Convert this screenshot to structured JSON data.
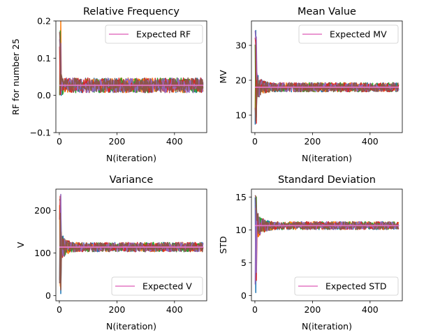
{
  "figure": {
    "background": "#ffffff"
  },
  "colors": {
    "trace_cycle": [
      "#1f77b4",
      "#ff7f0e",
      "#2ca02c",
      "#d62728",
      "#9467bd",
      "#8c564b"
    ],
    "expected_line": "#e377c2"
  },
  "chart_data": [
    {
      "type": "line",
      "title": "Relative Frequency",
      "xlabel": "N(iteration)",
      "ylabel": "RF for number 25",
      "xlim": [
        -12,
        512
      ],
      "ylim": [
        -0.1,
        0.2
      ],
      "xticks": [
        0,
        200,
        400
      ],
      "xtick_labels": [
        "0",
        "200",
        "400"
      ],
      "yticks": [
        -0.1,
        0.0,
        0.1,
        0.2
      ],
      "ytick_labels": [
        "−0.1",
        "0.0",
        "0.1",
        "0.2"
      ],
      "legend": {
        "label": "Expected RF",
        "loc": "upper right"
      },
      "expected": 0.027,
      "n_iterations": 500,
      "n_series": 6,
      "series_min": 0.0,
      "series_max": 0.2,
      "band_end": 0.018
    },
    {
      "type": "line",
      "title": "Mean Value",
      "xlabel": "N(iteration)",
      "ylabel": "MV",
      "xlim": [
        -12,
        512
      ],
      "ylim": [
        5,
        37
      ],
      "xticks": [
        0,
        200,
        400
      ],
      "xtick_labels": [
        "0",
        "200",
        "400"
      ],
      "yticks": [
        10,
        20,
        30
      ],
      "ytick_labels": [
        "10",
        "20",
        "30"
      ],
      "legend": {
        "label": "Expected MV",
        "loc": "upper right"
      },
      "expected": 18.0,
      "n_iterations": 500,
      "n_series": 6,
      "series_min": 7,
      "series_max": 35.5,
      "band_end": 1.2
    },
    {
      "type": "line",
      "title": "Variance",
      "xlabel": "N(iteration)",
      "ylabel": "V",
      "xlim": [
        -12,
        512
      ],
      "ylim": [
        -12,
        250
      ],
      "xticks": [
        0,
        200,
        400
      ],
      "xtick_labels": [
        "0",
        "200",
        "400"
      ],
      "yticks": [
        0,
        100,
        200
      ],
      "ytick_labels": [
        "0",
        "100",
        "200"
      ],
      "legend": {
        "label": "Expected V",
        "loc": "lower right"
      },
      "expected": 114,
      "n_iterations": 500,
      "n_series": 6,
      "series_min": 0,
      "series_max": 238,
      "band_end": 10
    },
    {
      "type": "line",
      "title": "Standard Deviation",
      "xlabel": "N(iteration)",
      "ylabel": "STD",
      "xlim": [
        -12,
        512
      ],
      "ylim": [
        -0.8,
        16.2
      ],
      "xticks": [
        0,
        200,
        400
      ],
      "xtick_labels": [
        "0",
        "200",
        "400"
      ],
      "yticks": [
        0,
        5,
        10,
        15
      ],
      "ytick_labels": [
        "0",
        "5",
        "10",
        "15"
      ],
      "legend": {
        "label": "Expected STD",
        "loc": "lower right"
      },
      "expected": 10.65,
      "n_iterations": 500,
      "n_series": 6,
      "series_min": 0,
      "series_max": 15.5,
      "band_end": 0.55
    }
  ]
}
